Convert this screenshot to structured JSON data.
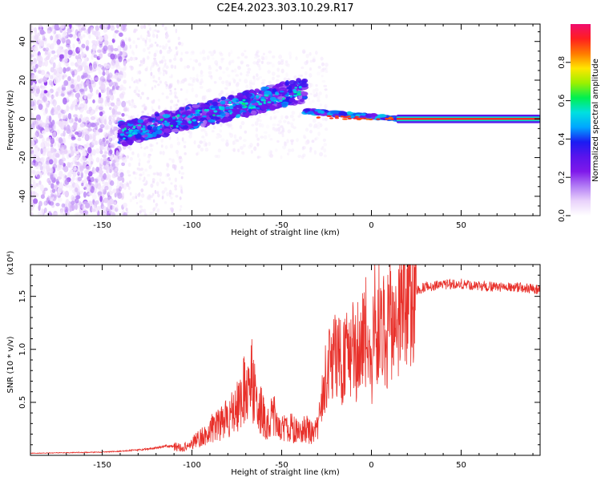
{
  "figure": {
    "title": "C2E4.2023.303.10.29.R17"
  },
  "colors": {
    "snr_line": "#e8302a",
    "colormap": [
      "#ffffff",
      "#e9d2fb",
      "#b27cf5",
      "#7f19ea",
      "#5a14ec",
      "#1b1bf2",
      "#00a6ff",
      "#00e0e0",
      "#00f050",
      "#9cf000",
      "#ffe600",
      "#ff7a00",
      "#ff1f1f",
      "#f00c6e"
    ]
  },
  "chart_data": [
    {
      "type": "heatmap",
      "title": "",
      "xlabel": "Height of straight line (km)",
      "ylabel": "Frequency (Hz)",
      "xlim": [
        -190,
        94
      ],
      "ylim": [
        -50,
        49
      ],
      "x_ticks": [
        -150,
        -100,
        -50,
        0,
        50
      ],
      "y_ticks": [
        -40,
        -20,
        0,
        20,
        40
      ],
      "colorbar": {
        "label": "Normalized spectral amplitude",
        "range": [
          0,
          1
        ],
        "ticks": [
          0.0,
          0.2,
          0.4,
          0.6,
          0.8
        ]
      },
      "features": {
        "noise_region_x": [
          -190,
          -137
        ],
        "sparse_region_x": [
          -137,
          -105
        ],
        "rising_band": {
          "x": [
            -140,
            -37
          ],
          "freq": [
            -8,
            15
          ]
        },
        "steady_line": {
          "x": [
            -37,
            94
          ],
          "freq": [
            4,
            0
          ]
        }
      }
    },
    {
      "type": "line",
      "title": "",
      "xlabel": "Height of straight line (km)",
      "ylabel": "SNR (10 * v/v)",
      "scale_note": "(x10⁴)",
      "xlim": [
        -190,
        94
      ],
      "ylim": [
        0,
        18000
      ],
      "x_ticks": [
        -150,
        -100,
        -50,
        0,
        50
      ],
      "y_ticks": [
        5000,
        10000,
        15000
      ],
      "y_tick_labels": [
        "0.5",
        "1.0",
        "1.5"
      ],
      "series": [
        {
          "x": [
            -190,
            -170,
            -150,
            -140,
            -130,
            -120,
            -115,
            -110,
            -105,
            -100,
            -95,
            -90,
            -85,
            -80,
            -75,
            -70,
            -68,
            -65,
            -62,
            -60,
            -57,
            -55,
            -52,
            -50,
            -47,
            -45,
            -42,
            -40,
            -37,
            -35,
            -32,
            -30,
            -28,
            -26,
            -24,
            -22,
            -20,
            -18,
            -16,
            -14,
            -12,
            -10,
            -8,
            -6,
            -4,
            -2,
            0,
            2,
            4,
            6,
            8,
            10,
            12,
            14,
            16,
            18,
            20,
            25,
            30,
            40,
            50,
            60,
            70,
            80,
            90,
            94
          ],
          "values": [
            200,
            250,
            300,
            400,
            500,
            700,
            900,
            800,
            700,
            1200,
            1800,
            2400,
            2900,
            3600,
            4500,
            6500,
            8000,
            6000,
            4500,
            3500,
            3000,
            3800,
            3200,
            2800,
            2400,
            2600,
            2300,
            2400,
            2700,
            2300,
            2100,
            2600,
            4800,
            7000,
            9000,
            8000,
            10500,
            9200,
            8400,
            9800,
            9000,
            10200,
            8800,
            10200,
            11000,
            10000,
            7500,
            12200,
            11000,
            12800,
            10400,
            13000,
            11200,
            11800,
            13400,
            13900,
            14700,
            15500,
            15900,
            16100,
            16200,
            16000,
            15900,
            15900,
            15700,
            15600
          ]
        }
      ]
    }
  ]
}
